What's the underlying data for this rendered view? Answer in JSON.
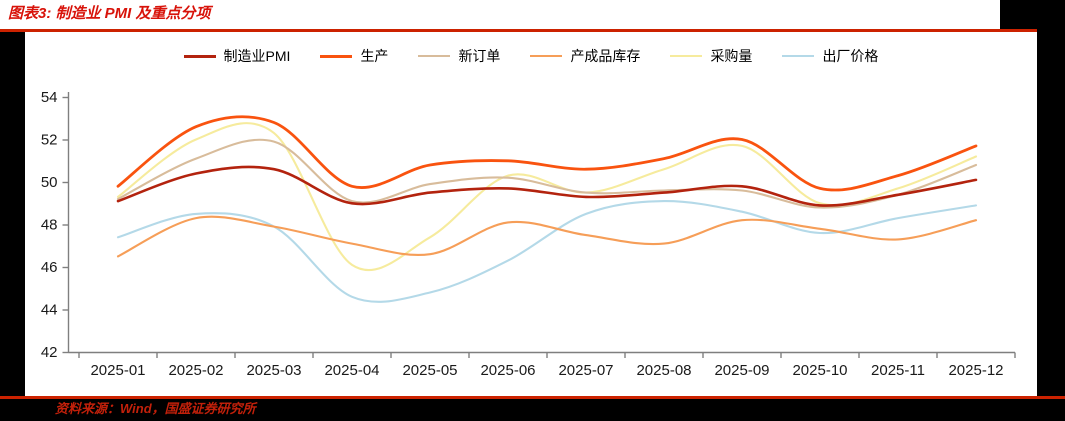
{
  "page": {
    "figure_label": "图表3: 制造业 PMI 及重点分项",
    "source_note": "资料来源：Wind，国盛证券研究所"
  },
  "colors": {
    "title_red": "#d8130a",
    "rule_red": "#cc2200",
    "source_red": "#c2200a",
    "axis_gray": "#7f7f7f",
    "tick_label": "#1a1a1a",
    "page_background": "#000000",
    "panel_background": "#ffffff"
  },
  "chart_data": {
    "type": "line",
    "title": "制造业 PMI 及重点分项",
    "categories": [
      "2025-01",
      "2025-02",
      "2025-03",
      "2025-04",
      "2025-05",
      "2025-06",
      "2025-07",
      "2025-08",
      "2025-09",
      "2025-10",
      "2025-11",
      "2025-12"
    ],
    "xlabel": "",
    "ylabel": "",
    "ylim": [
      42,
      54
    ],
    "yticks": [
      42,
      44,
      46,
      48,
      50,
      52,
      54
    ],
    "grid": false,
    "legend_position": "top",
    "line_style": "smooth",
    "series": [
      {
        "name": "制造业PMI",
        "color": "#b3230e",
        "values": [
          49.1,
          50.4,
          50.6,
          49.0,
          49.5,
          49.7,
          49.3,
          49.5,
          49.8,
          48.9,
          49.4,
          50.1
        ]
      },
      {
        "name": "生产",
        "color": "#f9530f",
        "values": [
          49.8,
          52.6,
          52.8,
          49.8,
          50.8,
          51.0,
          50.6,
          51.1,
          52.0,
          49.7,
          50.3,
          51.7
        ]
      },
      {
        "name": "新订单",
        "color": "#d8bc9b",
        "values": [
          49.2,
          51.1,
          51.9,
          49.1,
          49.9,
          50.2,
          49.5,
          49.6,
          49.6,
          48.8,
          49.4,
          50.8
        ]
      },
      {
        "name": "产成品库存",
        "color": "#f69e58",
        "values": [
          46.5,
          48.3,
          47.9,
          47.1,
          46.6,
          48.1,
          47.5,
          47.1,
          48.2,
          47.8,
          47.3,
          48.2
        ]
      },
      {
        "name": "采购量",
        "color": "#f6eb9d",
        "values": [
          49.3,
          52.0,
          52.3,
          46.1,
          47.4,
          50.3,
          49.5,
          50.6,
          51.7,
          49.0,
          49.7,
          51.2
        ]
      },
      {
        "name": "出厂价格",
        "color": "#b4d9e8",
        "values": [
          47.4,
          48.5,
          47.9,
          44.6,
          44.8,
          46.3,
          48.5,
          49.1,
          48.6,
          47.6,
          48.3,
          48.9
        ]
      }
    ]
  }
}
